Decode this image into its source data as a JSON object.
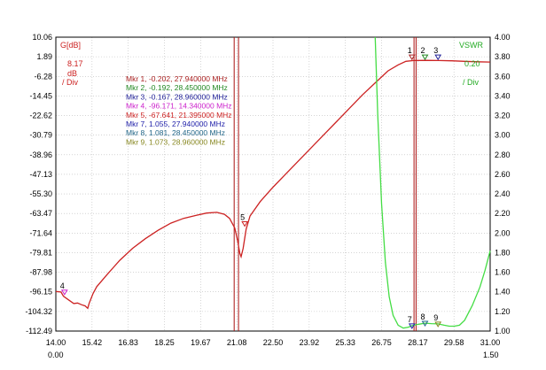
{
  "chart_data": {
    "type": "line",
    "left_axis": {
      "title": "G[dB]",
      "scale_value": "8.17",
      "scale_unit": "dB",
      "scale_div": "/ Div",
      "ticks": [
        "10.06",
        "1.89",
        "-6.28",
        "-14.45",
        "-22.62",
        "-30.79",
        "-38.96",
        "-47.13",
        "-55.30",
        "-63.47",
        "-71.64",
        "-79.81",
        "-87.98",
        "-96.15",
        "-104.32",
        "-112.49"
      ],
      "ylim": [
        -112.49,
        10.06
      ]
    },
    "right_axis": {
      "title": "VSWR",
      "scale_value": "0.20",
      "scale_div": "/ Div",
      "ticks": [
        "4.00",
        "3.80",
        "3.60",
        "3.40",
        "3.20",
        "3.00",
        "2.80",
        "2.60",
        "2.40",
        "2.20",
        "2.00",
        "1.80",
        "1.60",
        "1.40",
        "1.20",
        "1.00"
      ],
      "ylim": [
        1.0,
        4.0
      ]
    },
    "x_axis": {
      "ticks": [
        "14.00",
        "15.42",
        "16.83",
        "18.25",
        "19.67",
        "21.08",
        "22.50",
        "23.92",
        "25.33",
        "26.75",
        "28.17",
        "29.58",
        "31.00"
      ],
      "xlim": [
        14.0,
        31.0
      ],
      "start_sub": "0.00",
      "end_sub": "1.50"
    },
    "series": [
      {
        "name": "G[dB]",
        "color": "#cc2222",
        "points": [
          [
            14.0,
            -96.0
          ],
          [
            14.2,
            -96.2
          ],
          [
            14.3,
            -98.0
          ],
          [
            14.5,
            -99.5
          ],
          [
            14.7,
            -101.0
          ],
          [
            14.85,
            -100.8
          ],
          [
            15.0,
            -101.5
          ],
          [
            15.15,
            -102.0
          ],
          [
            15.25,
            -103.0
          ],
          [
            15.3,
            -101.0
          ],
          [
            15.45,
            -97.0
          ],
          [
            15.6,
            -94.0
          ],
          [
            16.0,
            -89.0
          ],
          [
            16.5,
            -83.0
          ],
          [
            17.0,
            -78.0
          ],
          [
            17.5,
            -74.0
          ],
          [
            18.0,
            -70.5
          ],
          [
            18.5,
            -67.5
          ],
          [
            19.0,
            -65.5
          ],
          [
            19.5,
            -64.2
          ],
          [
            19.9,
            -63.3
          ],
          [
            20.3,
            -63.0
          ],
          [
            20.6,
            -63.8
          ],
          [
            20.8,
            -65.5
          ],
          [
            21.0,
            -69.5
          ],
          [
            21.12,
            -75.0
          ],
          [
            21.2,
            -80.0
          ],
          [
            21.25,
            -81.5
          ],
          [
            21.33,
            -78.0
          ],
          [
            21.45,
            -70.0
          ],
          [
            21.6,
            -64.5
          ],
          [
            22.0,
            -58.5
          ],
          [
            22.5,
            -52.5
          ],
          [
            23.0,
            -47.0
          ],
          [
            23.5,
            -41.5
          ],
          [
            24.0,
            -36.0
          ],
          [
            24.5,
            -30.5
          ],
          [
            25.0,
            -25.0
          ],
          [
            25.5,
            -19.5
          ],
          [
            26.0,
            -14.0
          ],
          [
            26.5,
            -9.0
          ],
          [
            27.0,
            -4.0
          ],
          [
            27.4,
            -1.5
          ],
          [
            27.7,
            0.0
          ],
          [
            28.0,
            0.3
          ],
          [
            28.5,
            0.4
          ],
          [
            29.0,
            0.3
          ],
          [
            29.5,
            0.2
          ],
          [
            30.0,
            0.0
          ],
          [
            30.5,
            -0.2
          ],
          [
            31.0,
            -0.3
          ]
        ]
      },
      {
        "name": "VSWR",
        "color": "#44dd44",
        "points": [
          [
            26.5,
            4.0
          ],
          [
            26.6,
            3.2
          ],
          [
            26.75,
            2.3
          ],
          [
            26.9,
            1.7
          ],
          [
            27.05,
            1.35
          ],
          [
            27.2,
            1.16
          ],
          [
            27.4,
            1.06
          ],
          [
            27.6,
            1.03
          ],
          [
            27.8,
            1.04
          ],
          [
            27.94,
            1.055
          ],
          [
            28.2,
            1.07
          ],
          [
            28.45,
            1.08
          ],
          [
            28.7,
            1.076
          ],
          [
            28.96,
            1.073
          ],
          [
            29.2,
            1.06
          ],
          [
            29.4,
            1.05
          ],
          [
            29.6,
            1.05
          ],
          [
            29.8,
            1.06
          ],
          [
            30.0,
            1.11
          ],
          [
            30.3,
            1.26
          ],
          [
            30.6,
            1.45
          ],
          [
            30.8,
            1.62
          ],
          [
            31.0,
            1.82
          ]
        ]
      }
    ],
    "vertical_markers": [
      20.98,
      21.15,
      28.02,
      28.1
    ],
    "markers": [
      {
        "id": "1",
        "x": 27.94,
        "y": 1.89,
        "axis": "left",
        "color": "#aa2222",
        "label": "Mkr 1, -0.202, 27.940000 MHz"
      },
      {
        "id": "2",
        "x": 28.45,
        "y": 1.89,
        "axis": "left",
        "color": "#228822",
        "label": "Mkr 2, -0.192, 28.450000 MHz"
      },
      {
        "id": "3",
        "x": 28.96,
        "y": 1.89,
        "axis": "left",
        "color": "#222299",
        "label": "Mkr 3, -0.167, 28.960000 MHz"
      },
      {
        "id": "4",
        "x": 14.34,
        "y": -96.171,
        "axis": "left",
        "color": "#cc22cc",
        "label": "Mkr 4, -96.171, 14.340000 MHz"
      },
      {
        "id": "5",
        "x": 21.395,
        "y": -67.641,
        "axis": "left",
        "color": "#cc2222",
        "label": "Mkr 5, -67.641, 21.395000 MHz"
      },
      {
        "id": "7",
        "x": 27.94,
        "y": 1.055,
        "axis": "right",
        "color": "#2222aa",
        "label": "Mkr 7, 1.055, 27.940000 MHz"
      },
      {
        "id": "8",
        "x": 28.45,
        "y": 1.081,
        "axis": "right",
        "color": "#226688",
        "label": "Mkr 8, 1.081, 28.450000 MHz"
      },
      {
        "id": "9",
        "x": 28.96,
        "y": 1.073,
        "axis": "right",
        "color": "#888822",
        "label": "Mkr 9, 1.073, 28.960000 MHz"
      }
    ],
    "grid": true
  }
}
